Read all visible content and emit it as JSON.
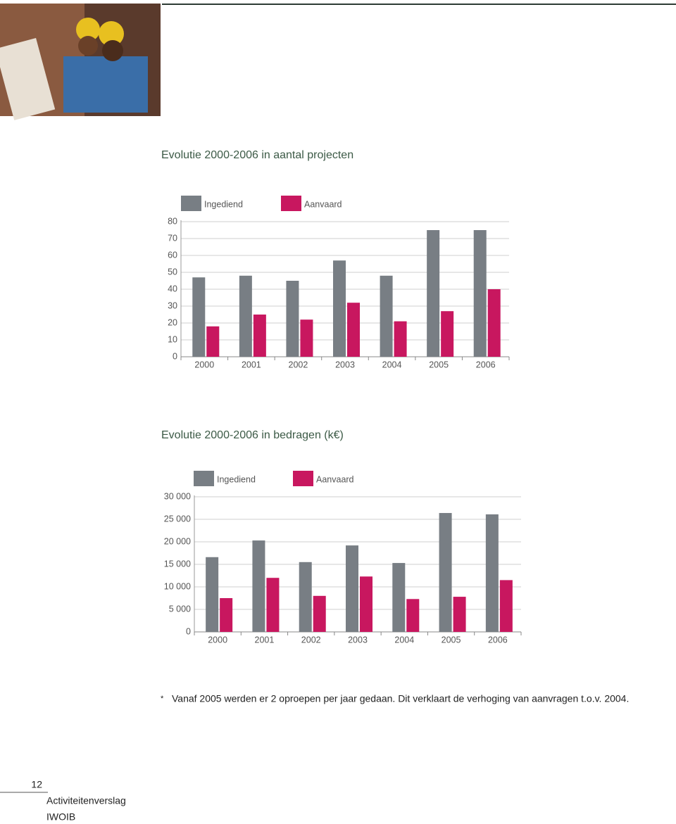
{
  "chart_data": [
    {
      "type": "bar",
      "title": "Evolutie 2000-2006 in aantal projecten",
      "categories": [
        "2000",
        "2001",
        "2002",
        "2003",
        "2004",
        "2005",
        "2006"
      ],
      "series": [
        {
          "name": "Ingediend",
          "color": "#787e84",
          "values": [
            47,
            48,
            45,
            57,
            48,
            75,
            75
          ]
        },
        {
          "name": "Aanvaard",
          "color": "#c8175f",
          "values": [
            18,
            25,
            22,
            32,
            21,
            27,
            40
          ]
        }
      ],
      "ylim": [
        0,
        80
      ],
      "yticks": [
        0,
        10,
        20,
        30,
        40,
        50,
        60,
        70,
        80
      ],
      "grid": true
    },
    {
      "type": "bar",
      "title": "Evolutie 2000-2006 in bedragen (k€)",
      "categories": [
        "2000",
        "2001",
        "2002",
        "2003",
        "2004",
        "2005",
        "2006"
      ],
      "series": [
        {
          "name": "Ingediend",
          "color": "#787e84",
          "values": [
            16600,
            20300,
            15500,
            19200,
            15300,
            26400,
            26100
          ]
        },
        {
          "name": "Aanvaard",
          "color": "#c8175f",
          "values": [
            7500,
            12000,
            8000,
            12300,
            7300,
            7800,
            11500
          ]
        }
      ],
      "ylim": [
        0,
        30000
      ],
      "yticks": [
        0,
        {
          "value": 5000,
          "label": "5 000"
        },
        {
          "value": 10000,
          "label": "10 000"
        },
        {
          "value": 15000,
          "label": "15 000"
        },
        {
          "value": 20000,
          "label": "20 000"
        },
        {
          "value": 25000,
          "label": "25 000"
        },
        {
          "value": 30000,
          "label": "30 000"
        }
      ],
      "grid": true
    }
  ],
  "footnote": {
    "marker": "*",
    "text": "Vanaf 2005 werden er 2 oproepen per jaar gedaan. Dit verklaart de verhoging van aanvragen t.o.v. 2004."
  },
  "footer": {
    "page": "12",
    "lines": [
      "Activiteitenverslag",
      "IWOIB"
    ]
  }
}
